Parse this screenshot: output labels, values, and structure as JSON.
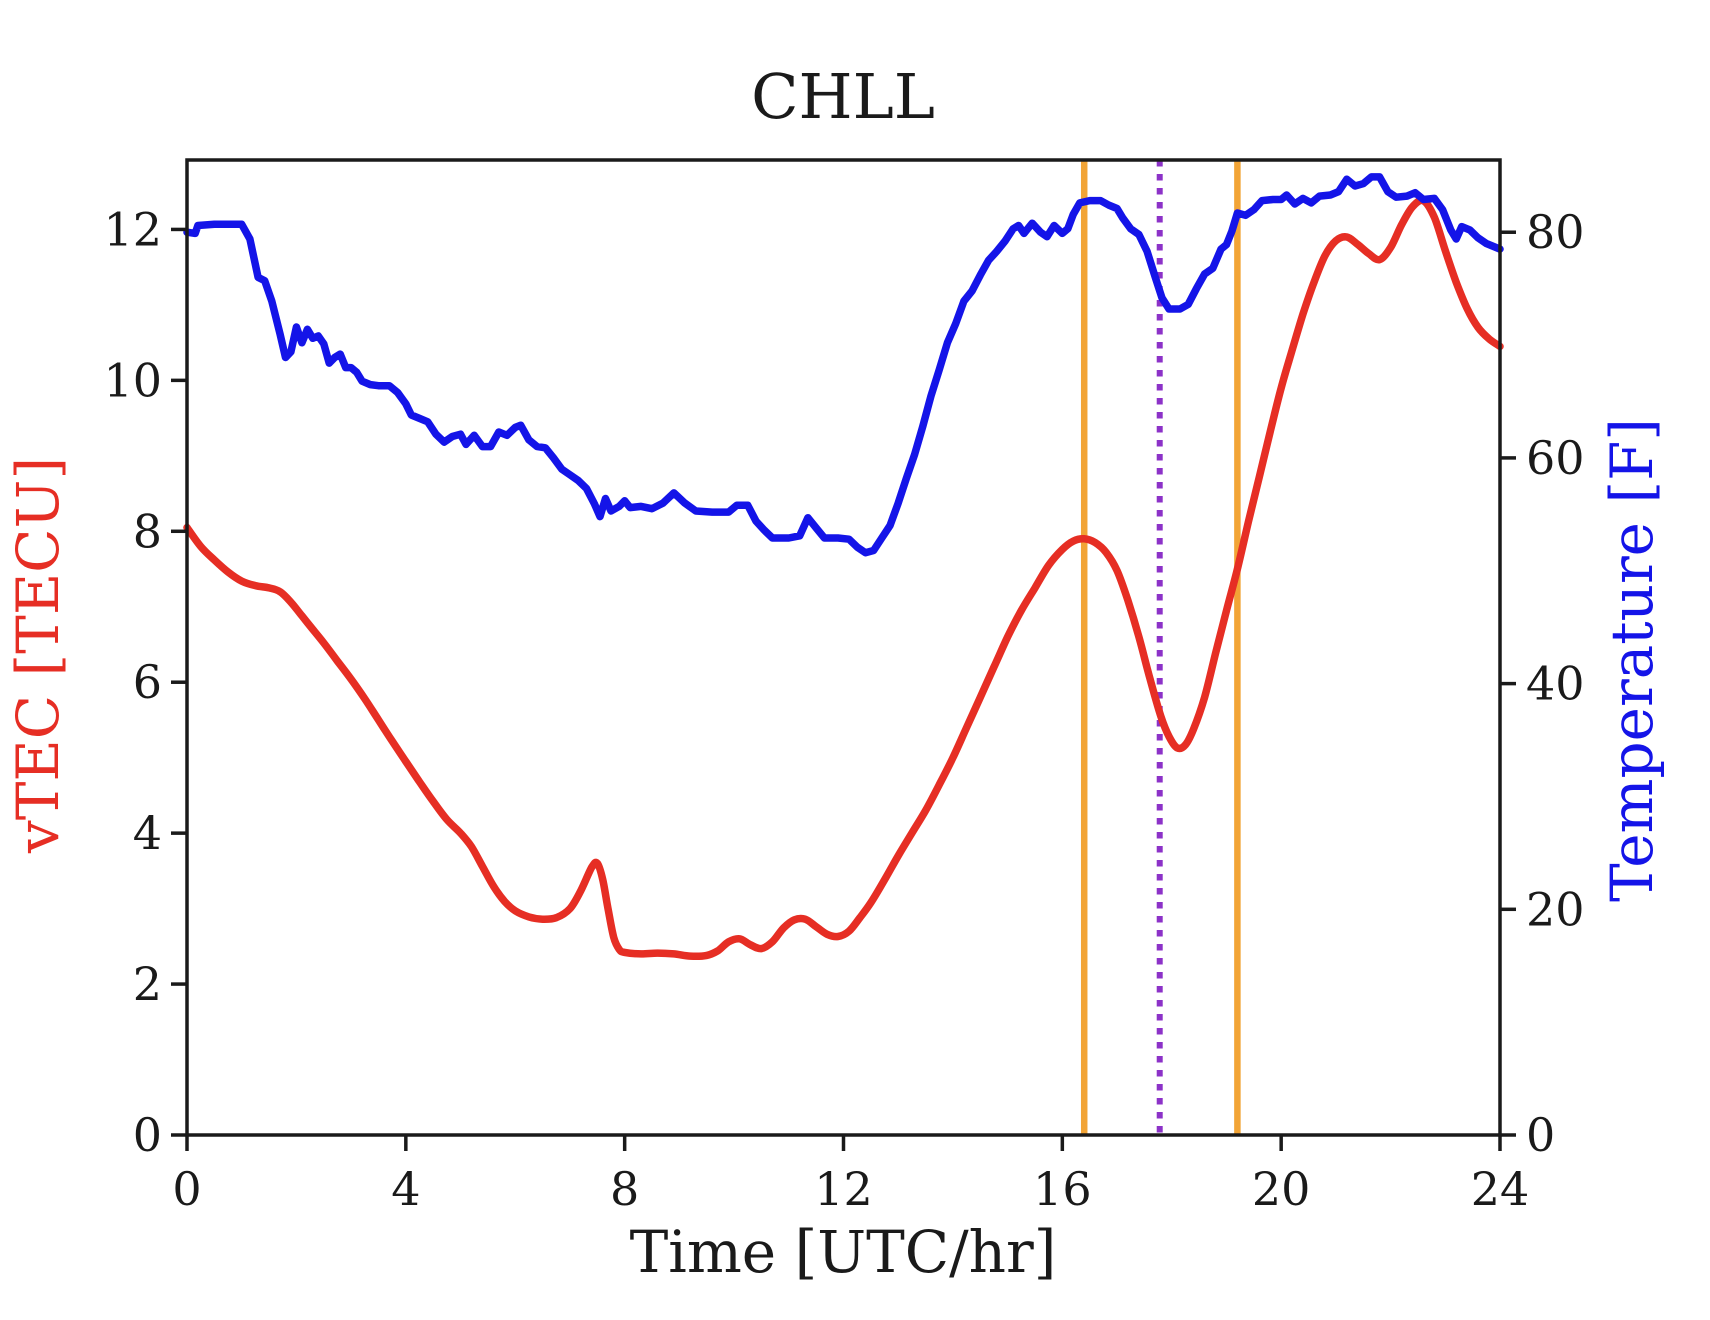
{
  "figure": {
    "background": "#ffffff",
    "spine_color": "#1a1a1a",
    "text_color": "#1a1a1a"
  },
  "chart_data": {
    "type": "line",
    "title": "CHLL",
    "xlabel": "Time [UTC/hr]",
    "xlim": [
      0,
      24
    ],
    "x_ticks": [
      0,
      4,
      8,
      12,
      16,
      20,
      24
    ],
    "legend": "none",
    "grid": false,
    "series": [
      {
        "name": "vTEC",
        "axis": "left",
        "ylabel": "vTEC [TECU]",
        "color": "#e62e24",
        "ylim": [
          0,
          12.92
        ],
        "yticks": [
          0,
          2,
          4,
          6,
          8,
          10,
          12
        ],
        "smooth": true,
        "points": [
          [
            0,
            8.05
          ],
          [
            0.25,
            7.8
          ],
          [
            0.5,
            7.62
          ],
          [
            0.75,
            7.46
          ],
          [
            1.0,
            7.34
          ],
          [
            1.25,
            7.28
          ],
          [
            1.5,
            7.25
          ],
          [
            1.7,
            7.2
          ],
          [
            1.9,
            7.06
          ],
          [
            2.1,
            6.88
          ],
          [
            2.3,
            6.7
          ],
          [
            2.5,
            6.52
          ],
          [
            2.75,
            6.28
          ],
          [
            3.0,
            6.04
          ],
          [
            3.25,
            5.78
          ],
          [
            3.5,
            5.5
          ],
          [
            3.75,
            5.22
          ],
          [
            4.0,
            4.95
          ],
          [
            4.25,
            4.68
          ],
          [
            4.5,
            4.42
          ],
          [
            4.75,
            4.18
          ],
          [
            5.0,
            4.0
          ],
          [
            5.2,
            3.82
          ],
          [
            5.4,
            3.56
          ],
          [
            5.6,
            3.3
          ],
          [
            5.8,
            3.1
          ],
          [
            6.0,
            2.97
          ],
          [
            6.25,
            2.89
          ],
          [
            6.5,
            2.86
          ],
          [
            6.75,
            2.88
          ],
          [
            7.0,
            3.0
          ],
          [
            7.2,
            3.24
          ],
          [
            7.4,
            3.55
          ],
          [
            7.5,
            3.6
          ],
          [
            7.6,
            3.38
          ],
          [
            7.7,
            2.98
          ],
          [
            7.8,
            2.62
          ],
          [
            7.9,
            2.46
          ],
          [
            8.0,
            2.42
          ],
          [
            8.3,
            2.4
          ],
          [
            8.6,
            2.41
          ],
          [
            8.9,
            2.4
          ],
          [
            9.2,
            2.37
          ],
          [
            9.5,
            2.38
          ],
          [
            9.7,
            2.44
          ],
          [
            9.9,
            2.56
          ],
          [
            10.1,
            2.6
          ],
          [
            10.3,
            2.52
          ],
          [
            10.5,
            2.47
          ],
          [
            10.7,
            2.56
          ],
          [
            10.9,
            2.74
          ],
          [
            11.1,
            2.85
          ],
          [
            11.3,
            2.86
          ],
          [
            11.5,
            2.76
          ],
          [
            11.7,
            2.66
          ],
          [
            11.9,
            2.63
          ],
          [
            12.1,
            2.7
          ],
          [
            12.3,
            2.88
          ],
          [
            12.5,
            3.08
          ],
          [
            12.75,
            3.38
          ],
          [
            13.0,
            3.7
          ],
          [
            13.25,
            4.0
          ],
          [
            13.5,
            4.3
          ],
          [
            13.75,
            4.64
          ],
          [
            14.0,
            5.0
          ],
          [
            14.25,
            5.4
          ],
          [
            14.5,
            5.8
          ],
          [
            14.75,
            6.2
          ],
          [
            15.0,
            6.6
          ],
          [
            15.25,
            6.95
          ],
          [
            15.5,
            7.25
          ],
          [
            15.75,
            7.55
          ],
          [
            16.0,
            7.76
          ],
          [
            16.2,
            7.87
          ],
          [
            16.4,
            7.9
          ],
          [
            16.6,
            7.85
          ],
          [
            16.8,
            7.72
          ],
          [
            17.0,
            7.48
          ],
          [
            17.2,
            7.08
          ],
          [
            17.4,
            6.6
          ],
          [
            17.6,
            6.05
          ],
          [
            17.8,
            5.55
          ],
          [
            17.95,
            5.28
          ],
          [
            18.1,
            5.13
          ],
          [
            18.25,
            5.17
          ],
          [
            18.4,
            5.38
          ],
          [
            18.6,
            5.8
          ],
          [
            18.8,
            6.38
          ],
          [
            19.0,
            6.95
          ],
          [
            19.2,
            7.5
          ],
          [
            19.4,
            8.12
          ],
          [
            19.6,
            8.72
          ],
          [
            19.8,
            9.32
          ],
          [
            20.0,
            9.9
          ],
          [
            20.2,
            10.4
          ],
          [
            20.4,
            10.88
          ],
          [
            20.6,
            11.3
          ],
          [
            20.8,
            11.65
          ],
          [
            21.0,
            11.85
          ],
          [
            21.2,
            11.9
          ],
          [
            21.4,
            11.8
          ],
          [
            21.6,
            11.68
          ],
          [
            21.8,
            11.6
          ],
          [
            22.0,
            11.76
          ],
          [
            22.2,
            12.06
          ],
          [
            22.4,
            12.3
          ],
          [
            22.6,
            12.38
          ],
          [
            22.8,
            12.16
          ],
          [
            23.0,
            11.72
          ],
          [
            23.2,
            11.3
          ],
          [
            23.4,
            10.95
          ],
          [
            23.6,
            10.7
          ],
          [
            23.8,
            10.55
          ],
          [
            24.0,
            10.45
          ]
        ]
      },
      {
        "name": "Temperature",
        "axis": "right",
        "ylabel": "Temperature [F]",
        "color": "#1414e8",
        "ylim": [
          0,
          86.4
        ],
        "yticks": [
          0,
          20,
          40,
          60,
          80
        ],
        "smooth": false,
        "points": [
          [
            0,
            80.0
          ],
          [
            0.15,
            79.9
          ],
          [
            0.2,
            80.6
          ],
          [
            0.5,
            80.7
          ],
          [
            0.8,
            80.7
          ],
          [
            1.0,
            80.7
          ],
          [
            1.15,
            79.4
          ],
          [
            1.3,
            76.0
          ],
          [
            1.42,
            75.7
          ],
          [
            1.55,
            73.9
          ],
          [
            1.7,
            71.0
          ],
          [
            1.8,
            68.9
          ],
          [
            1.9,
            69.4
          ],
          [
            2.0,
            71.6
          ],
          [
            2.1,
            70.2
          ],
          [
            2.2,
            71.4
          ],
          [
            2.3,
            70.6
          ],
          [
            2.4,
            70.8
          ],
          [
            2.5,
            70.1
          ],
          [
            2.6,
            68.4
          ],
          [
            2.7,
            68.9
          ],
          [
            2.8,
            69.2
          ],
          [
            2.9,
            68.0
          ],
          [
            3.0,
            68.0
          ],
          [
            3.1,
            67.6
          ],
          [
            3.2,
            66.8
          ],
          [
            3.35,
            66.5
          ],
          [
            3.5,
            66.4
          ],
          [
            3.7,
            66.4
          ],
          [
            3.85,
            65.8
          ],
          [
            4.0,
            64.8
          ],
          [
            4.1,
            63.8
          ],
          [
            4.25,
            63.5
          ],
          [
            4.4,
            63.2
          ],
          [
            4.55,
            62.1
          ],
          [
            4.7,
            61.4
          ],
          [
            4.85,
            61.9
          ],
          [
            5.0,
            62.1
          ],
          [
            5.1,
            61.2
          ],
          [
            5.25,
            62.0
          ],
          [
            5.4,
            61.0
          ],
          [
            5.55,
            61.0
          ],
          [
            5.7,
            62.3
          ],
          [
            5.85,
            62.0
          ],
          [
            6.0,
            62.7
          ],
          [
            6.1,
            62.9
          ],
          [
            6.25,
            61.6
          ],
          [
            6.4,
            61.0
          ],
          [
            6.55,
            60.9
          ],
          [
            6.7,
            60.0
          ],
          [
            6.85,
            59.0
          ],
          [
            7.0,
            58.5
          ],
          [
            7.15,
            58.0
          ],
          [
            7.3,
            57.3
          ],
          [
            7.45,
            55.9
          ],
          [
            7.55,
            54.8
          ],
          [
            7.65,
            56.4
          ],
          [
            7.75,
            55.3
          ],
          [
            7.9,
            55.7
          ],
          [
            8.0,
            56.2
          ],
          [
            8.1,
            55.6
          ],
          [
            8.3,
            55.7
          ],
          [
            8.5,
            55.5
          ],
          [
            8.7,
            56.0
          ],
          [
            8.9,
            56.9
          ],
          [
            9.1,
            56.0
          ],
          [
            9.3,
            55.3
          ],
          [
            9.6,
            55.2
          ],
          [
            9.9,
            55.2
          ],
          [
            10.05,
            55.8
          ],
          [
            10.25,
            55.8
          ],
          [
            10.4,
            54.4
          ],
          [
            10.55,
            53.6
          ],
          [
            10.7,
            52.9
          ],
          [
            11.0,
            52.9
          ],
          [
            11.2,
            53.1
          ],
          [
            11.35,
            54.7
          ],
          [
            11.5,
            53.8
          ],
          [
            11.65,
            52.9
          ],
          [
            11.9,
            52.9
          ],
          [
            12.1,
            52.8
          ],
          [
            12.25,
            52.1
          ],
          [
            12.4,
            51.6
          ],
          [
            12.55,
            51.8
          ],
          [
            12.7,
            52.9
          ],
          [
            12.85,
            54.0
          ],
          [
            13.0,
            56.0
          ],
          [
            13.15,
            58.2
          ],
          [
            13.3,
            60.3
          ],
          [
            13.45,
            62.8
          ],
          [
            13.6,
            65.5
          ],
          [
            13.75,
            67.8
          ],
          [
            13.9,
            70.2
          ],
          [
            14.05,
            71.9
          ],
          [
            14.2,
            73.9
          ],
          [
            14.35,
            74.8
          ],
          [
            14.5,
            76.2
          ],
          [
            14.65,
            77.5
          ],
          [
            14.8,
            78.3
          ],
          [
            14.95,
            79.2
          ],
          [
            15.1,
            80.3
          ],
          [
            15.2,
            80.6
          ],
          [
            15.3,
            79.9
          ],
          [
            15.45,
            80.8
          ],
          [
            15.6,
            80.0
          ],
          [
            15.72,
            79.6
          ],
          [
            15.85,
            80.6
          ],
          [
            16.0,
            79.9
          ],
          [
            16.1,
            80.3
          ],
          [
            16.2,
            81.6
          ],
          [
            16.32,
            82.6
          ],
          [
            16.5,
            82.8
          ],
          [
            16.7,
            82.8
          ],
          [
            16.85,
            82.4
          ],
          [
            17.0,
            82.1
          ],
          [
            17.1,
            81.3
          ],
          [
            17.25,
            80.3
          ],
          [
            17.4,
            79.8
          ],
          [
            17.55,
            78.3
          ],
          [
            17.7,
            76.0
          ],
          [
            17.82,
            74.2
          ],
          [
            17.95,
            73.2
          ],
          [
            18.15,
            73.2
          ],
          [
            18.3,
            73.6
          ],
          [
            18.45,
            75.0
          ],
          [
            18.6,
            76.3
          ],
          [
            18.75,
            76.8
          ],
          [
            18.9,
            78.5
          ],
          [
            19.0,
            78.9
          ],
          [
            19.1,
            80.1
          ],
          [
            19.2,
            81.7
          ],
          [
            19.35,
            81.5
          ],
          [
            19.5,
            82.0
          ],
          [
            19.65,
            82.8
          ],
          [
            19.85,
            82.9
          ],
          [
            20.0,
            82.9
          ],
          [
            20.1,
            83.3
          ],
          [
            20.25,
            82.5
          ],
          [
            20.4,
            83.0
          ],
          [
            20.55,
            82.6
          ],
          [
            20.7,
            83.2
          ],
          [
            20.9,
            83.3
          ],
          [
            21.05,
            83.6
          ],
          [
            21.2,
            84.7
          ],
          [
            21.35,
            84.1
          ],
          [
            21.5,
            84.3
          ],
          [
            21.65,
            84.9
          ],
          [
            21.8,
            84.9
          ],
          [
            21.95,
            83.6
          ],
          [
            22.1,
            83.1
          ],
          [
            22.3,
            83.2
          ],
          [
            22.45,
            83.5
          ],
          [
            22.6,
            82.9
          ],
          [
            22.8,
            83.0
          ],
          [
            22.95,
            82.0
          ],
          [
            23.1,
            80.2
          ],
          [
            23.2,
            79.4
          ],
          [
            23.3,
            80.5
          ],
          [
            23.45,
            80.2
          ],
          [
            23.6,
            79.5
          ],
          [
            23.75,
            79.0
          ],
          [
            24.0,
            78.5
          ]
        ]
      }
    ],
    "vlines": [
      {
        "x": 16.4,
        "color": "#f2a436",
        "style": "solid"
      },
      {
        "x": 17.78,
        "color": "#8c32c8",
        "style": "dotted"
      },
      {
        "x": 19.2,
        "color": "#f2a436",
        "style": "solid"
      }
    ]
  }
}
